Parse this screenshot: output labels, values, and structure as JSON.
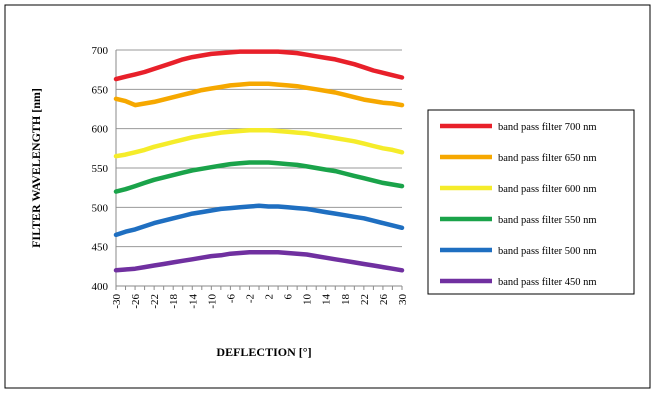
{
  "chart_data": {
    "type": "line",
    "title": "",
    "xlabel": "DEFLECTION [°]",
    "ylabel": "FILTER WAVELENGTH [nm]",
    "xlim": [
      -30,
      30
    ],
    "ylim": [
      400,
      700
    ],
    "x_ticks": [
      -30,
      -28,
      -26,
      -24,
      -22,
      -20,
      -18,
      -16,
      -14,
      -12,
      -10,
      -8,
      -6,
      -4,
      -2,
      0,
      2,
      4,
      6,
      8,
      10,
      12,
      14,
      16,
      18,
      20,
      22,
      24,
      26,
      28,
      30
    ],
    "x_tick_labels": [
      "-30",
      "-26",
      "-22",
      "-18",
      "-14",
      "-10",
      "-6",
      "-2",
      "2",
      "6",
      "10",
      "14",
      "18",
      "22",
      "26",
      "30"
    ],
    "y_ticks": [
      400,
      450,
      500,
      550,
      600,
      650,
      700
    ],
    "y_tick_labels": [
      "400",
      "450",
      "500",
      "550",
      "600",
      "650",
      "700"
    ],
    "grid": "horizontal",
    "legend_position": "right",
    "x": [
      -30,
      -28,
      -26,
      -24,
      -22,
      -20,
      -18,
      -16,
      -14,
      -12,
      -10,
      -8,
      -6,
      -4,
      -2,
      0,
      2,
      4,
      6,
      8,
      10,
      12,
      14,
      16,
      18,
      20,
      22,
      24,
      26,
      28,
      30
    ],
    "series": [
      {
        "name": "band pass filter 700 nm",
        "color": "#e8202a",
        "values": [
          663,
          666,
          669,
          672,
          676,
          680,
          684,
          688,
          691,
          693,
          695,
          696,
          697,
          698,
          698,
          698,
          698,
          698,
          697,
          696,
          694,
          692,
          690,
          688,
          685,
          682,
          678,
          674,
          671,
          668,
          665
        ]
      },
      {
        "name": "band pass filter 650 nm",
        "color": "#f6a800",
        "values": [
          638,
          635,
          630,
          632,
          634,
          637,
          640,
          643,
          646,
          649,
          651,
          653,
          655,
          656,
          657,
          657,
          657,
          656,
          655,
          654,
          652,
          650,
          648,
          646,
          643,
          640,
          637,
          635,
          633,
          632,
          630
        ]
      },
      {
        "name": "band pass filter 600 nm",
        "color": "#f5ec2a",
        "values": [
          565,
          567,
          570,
          573,
          577,
          580,
          583,
          586,
          589,
          591,
          593,
          595,
          596,
          597,
          598,
          598,
          598,
          597,
          596,
          595,
          594,
          592,
          590,
          588,
          586,
          584,
          581,
          578,
          575,
          573,
          570
        ]
      },
      {
        "name": "band pass filter 550 nm",
        "color": "#1aa34a",
        "values": [
          520,
          523,
          527,
          531,
          535,
          538,
          541,
          544,
          547,
          549,
          551,
          553,
          555,
          556,
          557,
          557,
          557,
          556,
          555,
          554,
          552,
          550,
          548,
          546,
          543,
          540,
          537,
          534,
          531,
          529,
          527
        ]
      },
      {
        "name": "band pass filter 500 nm",
        "color": "#1f6fc1",
        "values": [
          465,
          469,
          472,
          476,
          480,
          483,
          486,
          489,
          492,
          494,
          496,
          498,
          499,
          500,
          501,
          502,
          501,
          501,
          500,
          499,
          498,
          496,
          494,
          492,
          490,
          488,
          486,
          483,
          480,
          477,
          474
        ]
      },
      {
        "name": "band pass filter 450 nm",
        "color": "#7030a0",
        "values": [
          420,
          421,
          422,
          424,
          426,
          428,
          430,
          432,
          434,
          436,
          438,
          439,
          441,
          442,
          443,
          443,
          443,
          443,
          442,
          441,
          440,
          438,
          436,
          434,
          432,
          430,
          428,
          426,
          424,
          422,
          420
        ]
      }
    ]
  }
}
